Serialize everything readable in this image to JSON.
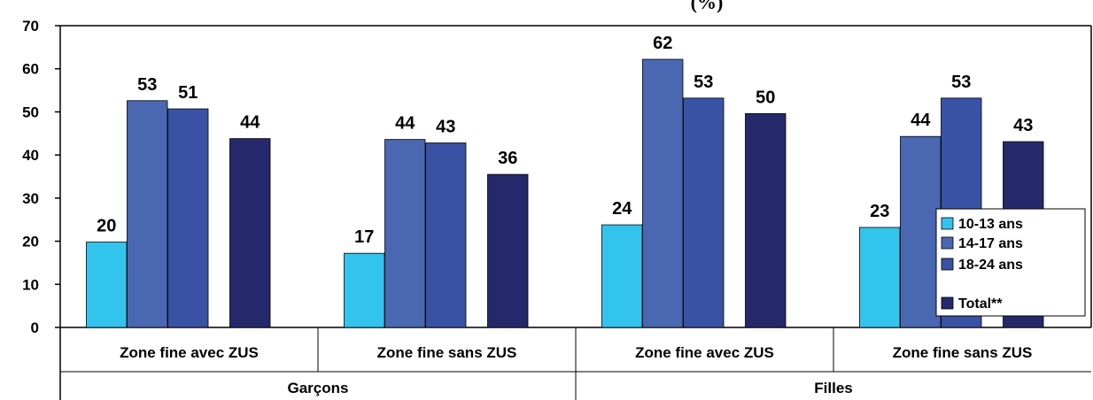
{
  "chart_data": {
    "type": "bar",
    "title_fragment": "(%)",
    "ylim": [
      0,
      70
    ],
    "yticks": [
      0,
      10,
      20,
      30,
      40,
      50,
      60,
      70
    ],
    "grid": false,
    "legend_placement": "right",
    "categories": [
      "Zone fine avec ZUS",
      "Zone fine sans ZUS",
      "Zone fine avec ZUS",
      "Zone fine sans ZUS"
    ],
    "groups": [
      {
        "label": "Garçons",
        "span": [
          0,
          1
        ]
      },
      {
        "label": "Filles",
        "span": [
          2,
          3
        ]
      }
    ],
    "series": [
      {
        "name": "10-13 ans",
        "color": "#33c4ee",
        "values": [
          19.8,
          17.2,
          23.8,
          23.2
        ],
        "labels": [
          "20",
          "17",
          "24",
          "23"
        ]
      },
      {
        "name": "14-17 ans",
        "color": "#4a67b2",
        "values": [
          52.6,
          43.6,
          62.2,
          44.3
        ],
        "labels": [
          "53",
          "44",
          "62",
          "44"
        ]
      },
      {
        "name": "18-24 ans",
        "color": "#3952a4",
        "values": [
          50.7,
          42.8,
          53.2,
          53.2
        ],
        "labels": [
          "51",
          "43",
          "53",
          "53"
        ]
      },
      {
        "name": "Total**",
        "color": "#25296b",
        "values": [
          43.8,
          35.5,
          49.6,
          43.1
        ],
        "labels": [
          "44",
          "36",
          "50",
          "43"
        ]
      }
    ]
  }
}
